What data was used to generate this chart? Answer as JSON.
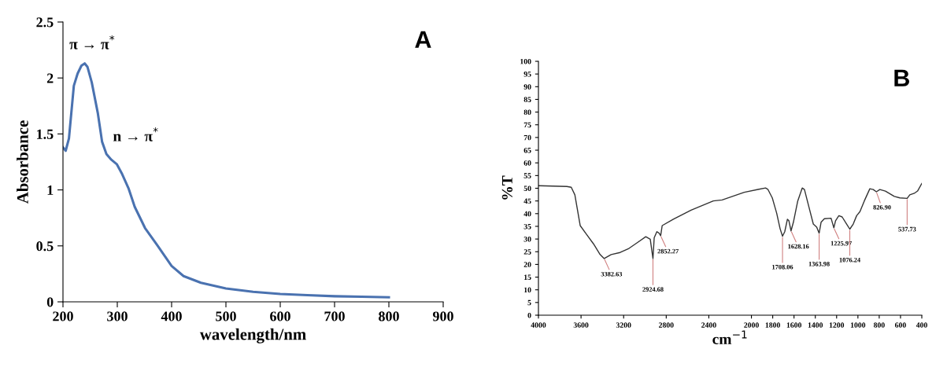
{
  "chart_data": [
    {
      "type": "line",
      "xlabel": "wavelength/nm",
      "ylabel": "Absorbance",
      "x": [
        200,
        205,
        211,
        220,
        227,
        234,
        240,
        245,
        253,
        264,
        272,
        280,
        289,
        299,
        308,
        321,
        332,
        351,
        373,
        400,
        422,
        454,
        500,
        550,
        600,
        650,
        700,
        750,
        800
      ],
      "series": [
        {
          "color": "#4a72b0",
          "values": [
            1.38,
            1.35,
            1.46,
            1.93,
            2.04,
            2.11,
            2.13,
            2.1,
            1.96,
            1.69,
            1.43,
            1.32,
            1.27,
            1.23,
            1.15,
            1.01,
            0.85,
            0.66,
            0.51,
            0.32,
            0.23,
            0.17,
            0.12,
            0.09,
            0.07,
            0.06,
            0.05,
            0.045,
            0.04
          ]
        }
      ],
      "xlim": [
        200,
        900
      ],
      "xticks": [
        200,
        300,
        400,
        500,
        600,
        700,
        800,
        900
      ],
      "ylim": [
        0,
        2.5
      ],
      "yticks": [
        0,
        0.5,
        1,
        1.5,
        2,
        2.5
      ],
      "annotations": [
        "A",
        {
          "text": "π → π$^{*}$",
          "x": 240,
          "y": 2.13
        },
        {
          "text": "n → π$^{*}$",
          "x": 300,
          "y": 1.23
        }
      ],
      "grid": false,
      "legend": false,
      "marker": "none",
      "line_style": "solid"
    },
    {
      "type": "line",
      "xlabel": "cm$^{−1}$",
      "ylabel": "%T",
      "x": [
        4000,
        3733,
        3692,
        3658,
        3608,
        3546,
        3483,
        3421,
        3382.63,
        3317,
        3233,
        3150,
        3067,
        2992,
        2950,
        2924.68,
        2913,
        2888,
        2867,
        2852.27,
        2838,
        2733,
        2567,
        2358,
        2275,
        2067,
        1929,
        1867,
        1846,
        1804,
        1763,
        1731,
        1708.06,
        1687,
        1662,
        1648,
        1628.16,
        1606,
        1565,
        1523,
        1502,
        1460,
        1419,
        1387,
        1363.98,
        1346,
        1315,
        1252,
        1225.97,
        1210,
        1179,
        1148,
        1106,
        1076.24,
        1044,
        1012,
        981,
        940,
        888,
        856,
        826.9,
        794,
        742,
        658,
        606,
        537.73,
        513,
        471,
        440,
        400
      ],
      "series": [
        {
          "color": "#333333",
          "values": [
            51.0,
            50.7,
            50.4,
            47.4,
            35.3,
            31.7,
            28.1,
            23.9,
            22.3,
            23.9,
            24.7,
            26.3,
            28.7,
            30.9,
            29.9,
            22.3,
            30.5,
            32.9,
            32.3,
            31.3,
            35.3,
            37.8,
            41.4,
            45.0,
            45.4,
            48.4,
            49.6,
            50.1,
            49.6,
            46.2,
            40.2,
            34.1,
            31.1,
            32.9,
            37.8,
            37.2,
            33.2,
            36.6,
            45.0,
            50.1,
            49.5,
            42.6,
            35.9,
            34.7,
            32.3,
            36.6,
            38.0,
            38.2,
            34.4,
            37.2,
            39.2,
            38.7,
            35.9,
            33.9,
            35.9,
            39.2,
            40.8,
            45.0,
            49.8,
            49.5,
            48.6,
            49.5,
            48.9,
            46.8,
            46.2,
            46.0,
            47.4,
            48.0,
            48.9,
            51.9
          ]
        }
      ],
      "xlim": [
        4000,
        400
      ],
      "xticks": [
        4000,
        3600,
        3200,
        2800,
        2400,
        2000,
        1800,
        1600,
        1400,
        1200,
        1000,
        800,
        600,
        400
      ],
      "ylim": [
        0,
        100
      ],
      "yticks": [
        0,
        5,
        10,
        15,
        20,
        25,
        30,
        35,
        40,
        45,
        50,
        55,
        60,
        65,
        70,
        75,
        80,
        85,
        90,
        95,
        100
      ],
      "annotations": [
        "B",
        {
          "text": "3382.63",
          "x": 3382.63,
          "y": 22.3
        },
        {
          "text": "2924.68",
          "x": 2924.68,
          "y": 22.3
        },
        {
          "text": "2852.27",
          "x": 2852.27,
          "y": 31.3
        },
        {
          "text": "1708.06",
          "x": 1708.06,
          "y": 31.1
        },
        {
          "text": "1628.16",
          "x": 1628.16,
          "y": 33.2
        },
        {
          "text": "1363.98",
          "x": 1363.98,
          "y": 32.3
        },
        {
          "text": "1225.97",
          "x": 1225.97,
          "y": 34.4
        },
        {
          "text": "1076.24",
          "x": 1076.24,
          "y": 33.9
        },
        {
          "text": "826.90",
          "x": 826.9,
          "y": 48.6
        },
        {
          "text": "537.73",
          "x": 537.73,
          "y": 46.0
        }
      ],
      "grid": false,
      "legend": false,
      "marker": "none",
      "line_style": "solid"
    }
  ]
}
